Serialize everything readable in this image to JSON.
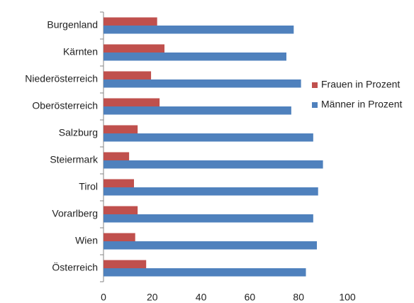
{
  "chart_data": {
    "type": "bar",
    "orientation": "horizontal",
    "categories": [
      "Burgenland",
      "Kärnten",
      "Niederösterreich",
      "Oberösterreich",
      "Salzburg",
      "Steiermark",
      "Tirol",
      "Vorarlberg",
      "Wien",
      "Österreich"
    ],
    "series": [
      {
        "name": "Frauen in Prozent",
        "color": "#c0504d",
        "values": [
          22,
          25,
          19.5,
          23,
          14,
          10.5,
          12.5,
          14,
          13,
          17.5
        ]
      },
      {
        "name": "Männer in Prozent",
        "color": "#4f81bd",
        "values": [
          78,
          75,
          81,
          77,
          86,
          90,
          88,
          86,
          87.5,
          83
        ]
      }
    ],
    "xlim": [
      0,
      100
    ],
    "xticks": [
      0,
      20,
      40,
      60,
      80,
      100
    ],
    "grid": false,
    "legend": "right"
  }
}
